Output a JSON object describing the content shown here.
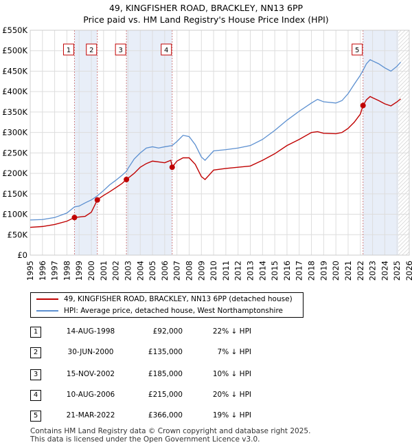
{
  "chart_data": {
    "type": "line",
    "title": "49, KINGFISHER ROAD, BRACKLEY, NN13 6PP",
    "subtitle": "Price paid vs. HM Land Registry's House Price Index (HPI)",
    "xlim": [
      1995,
      2026
    ],
    "ylim": [
      0,
      550000
    ],
    "x_ticks": [
      1995,
      1996,
      1997,
      1998,
      1999,
      2000,
      2001,
      2002,
      2003,
      2004,
      2005,
      2006,
      2007,
      2008,
      2009,
      2010,
      2011,
      2012,
      2013,
      2014,
      2015,
      2016,
      2017,
      2018,
      2019,
      2020,
      2021,
      2022,
      2023,
      2024,
      2025,
      2026
    ],
    "y_ticks": [
      0,
      50000,
      100000,
      150000,
      200000,
      250000,
      300000,
      350000,
      400000,
      450000,
      500000,
      550000
    ],
    "y_tick_labels": [
      "£0",
      "£50K",
      "£100K",
      "£150K",
      "£200K",
      "£250K",
      "£300K",
      "£350K",
      "£400K",
      "£450K",
      "£500K",
      "£550K"
    ],
    "forecast_start": 2025.1,
    "series": [
      {
        "name": "49, KINGFISHER ROAD, BRACKLEY, NN13 6PP (detached house)",
        "color": "#c00000",
        "x": [
          1995.0,
          1996.0,
          1997.0,
          1998.0,
          1998.62,
          1999.5,
          2000.0,
          2000.49,
          2000.7,
          2001.0,
          2001.5,
          2002.0,
          2002.5,
          2002.87,
          2003.5,
          2004.0,
          2004.5,
          2005.0,
          2005.5,
          2006.0,
          2006.5,
          2006.61,
          2007.0,
          2007.5,
          2008.0,
          2008.5,
          2009.0,
          2009.3,
          2010.0,
          2011.0,
          2012.0,
          2013.0,
          2014.0,
          2015.0,
          2016.0,
          2017.0,
          2018.0,
          2018.5,
          2019.0,
          2020.0,
          2020.5,
          2021.0,
          2021.5,
          2022.0,
          2022.22,
          2022.5,
          2022.8,
          2023.0,
          2023.5,
          2024.0,
          2024.5,
          2025.0,
          2025.3
        ],
        "values": [
          68000,
          70000,
          75000,
          83000,
          92000,
          95000,
          105000,
          135000,
          140000,
          146000,
          155000,
          165000,
          175000,
          185000,
          200000,
          215000,
          224000,
          230000,
          228000,
          226000,
          232000,
          215000,
          230000,
          238000,
          238000,
          222000,
          192000,
          185000,
          208000,
          212000,
          215000,
          218000,
          232000,
          248000,
          268000,
          283000,
          300000,
          302000,
          298000,
          297000,
          300000,
          310000,
          325000,
          345000,
          366000,
          380000,
          388000,
          385000,
          378000,
          370000,
          365000,
          375000,
          382000
        ]
      },
      {
        "name": "HPI: Average price, detached house, West Northamptonshire",
        "color": "#5b8fd0",
        "x": [
          1995.0,
          1996.0,
          1997.0,
          1998.0,
          1998.62,
          1999.0,
          1999.5,
          2000.0,
          2000.49,
          2001.0,
          2001.5,
          2002.0,
          2002.5,
          2002.87,
          2003.0,
          2003.5,
          2004.0,
          2004.5,
          2005.0,
          2005.5,
          2006.0,
          2006.61,
          2007.0,
          2007.5,
          2008.0,
          2008.5,
          2009.0,
          2009.3,
          2010.0,
          2011.0,
          2012.0,
          2013.0,
          2014.0,
          2015.0,
          2016.0,
          2017.0,
          2018.0,
          2018.5,
          2019.0,
          2020.0,
          2020.5,
          2021.0,
          2021.5,
          2022.0,
          2022.22,
          2022.5,
          2022.8,
          2023.0,
          2023.5,
          2024.0,
          2024.5,
          2025.0,
          2025.3
        ],
        "values": [
          86000,
          87000,
          92000,
          103000,
          118000,
          120000,
          128000,
          135000,
          145000,
          158000,
          172000,
          183000,
          195000,
          205000,
          212000,
          235000,
          250000,
          262000,
          265000,
          262000,
          265000,
          268000,
          278000,
          293000,
          290000,
          270000,
          240000,
          232000,
          255000,
          258000,
          262000,
          268000,
          283000,
          305000,
          330000,
          352000,
          372000,
          381000,
          375000,
          372000,
          378000,
          395000,
          418000,
          440000,
          452000,
          468000,
          478000,
          475000,
          468000,
          458000,
          450000,
          462000,
          472000
        ]
      }
    ],
    "sales": [
      {
        "label": "1",
        "date": "14-AUG-1998",
        "x": 1998.62,
        "price": "£92,000",
        "value": 92000,
        "hpi": "22% ↓ HPI"
      },
      {
        "label": "2",
        "date": "30-JUN-2000",
        "x": 2000.49,
        "price": "£135,000",
        "value": 135000,
        "hpi": "7% ↓ HPI"
      },
      {
        "label": "3",
        "date": "15-NOV-2002",
        "x": 2002.87,
        "price": "£185,000",
        "value": 185000,
        "hpi": "10% ↓ HPI"
      },
      {
        "label": "4",
        "date": "10-AUG-2006",
        "x": 2006.61,
        "price": "£215,000",
        "value": 215000,
        "hpi": "20% ↓ HPI"
      },
      {
        "label": "5",
        "date": "21-MAR-2022",
        "x": 2022.22,
        "price": "£366,000",
        "value": 366000,
        "hpi": "19% ↓ HPI"
      }
    ],
    "shaded_intervals": [
      [
        1998.62,
        2000.49
      ],
      [
        2002.87,
        2006.61
      ],
      [
        2022.22,
        2025.1
      ]
    ]
  },
  "footer": {
    "line1": "Contains HM Land Registry data © Crown copyright and database right 2025.",
    "line2": "This data is licensed under the Open Government Licence v3.0."
  }
}
